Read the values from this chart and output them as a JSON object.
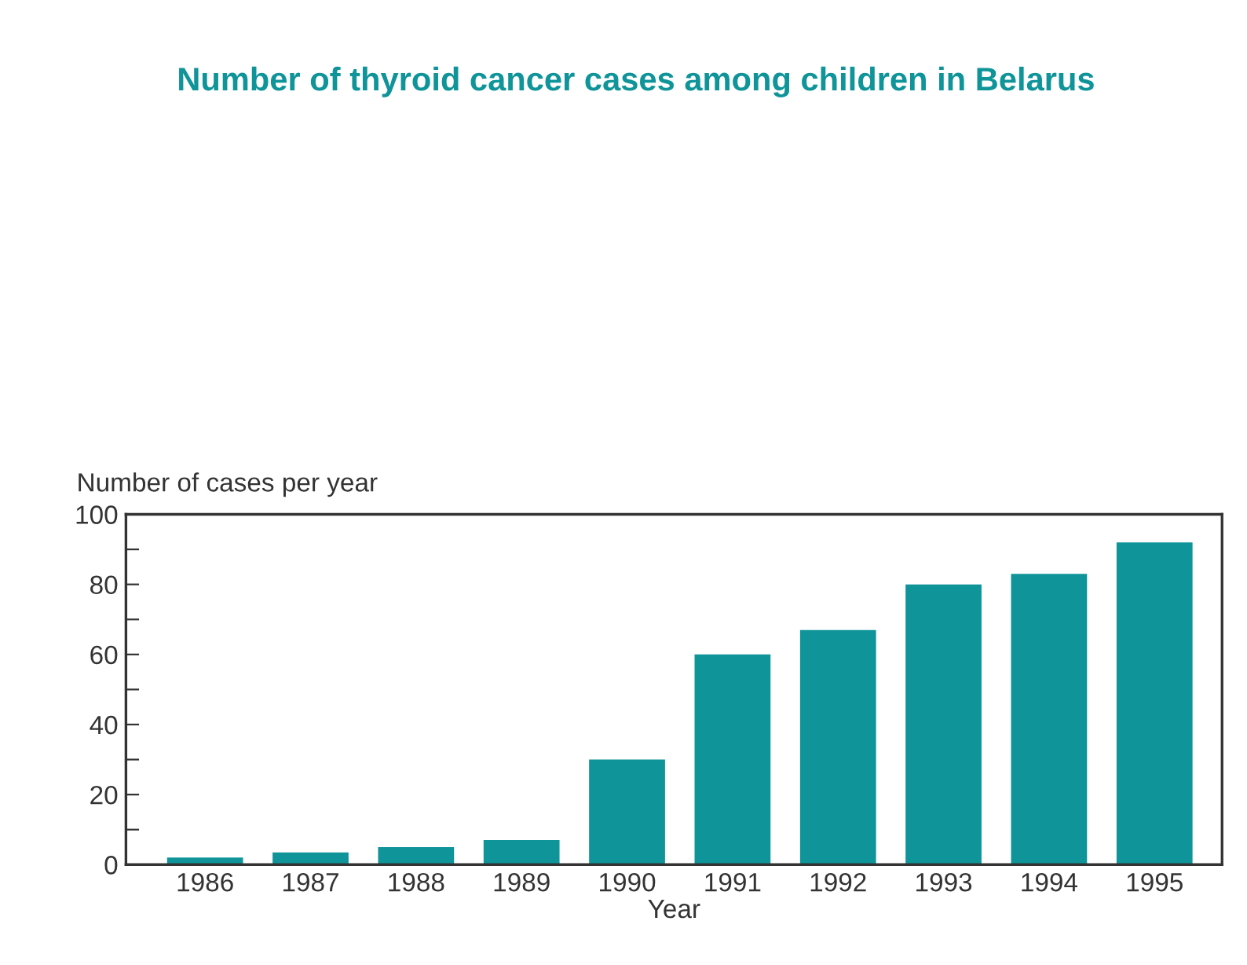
{
  "chart_data": {
    "type": "bar",
    "title": "Number of thyroid cancer cases among children in Belarus",
    "ylabel": "Number of cases per year",
    "xlabel": "Year",
    "categories": [
      "1986",
      "1987",
      "1988",
      "1989",
      "1990",
      "1991",
      "1992",
      "1993",
      "1994",
      "1995"
    ],
    "values": [
      2,
      3.5,
      5,
      7,
      30,
      60,
      67,
      80,
      83,
      92
    ],
    "color": "#0e9499",
    "ylim": [
      0,
      100
    ],
    "yticks": [
      0,
      {
        "value": 10,
        "label": null
      },
      20,
      {
        "value": 30,
        "label": null
      },
      40,
      {
        "value": 50,
        "label": null
      },
      60,
      {
        "value": 70,
        "label": null
      },
      80,
      {
        "value": 90,
        "label": null
      },
      100
    ],
    "grid": false,
    "legend": false
  }
}
